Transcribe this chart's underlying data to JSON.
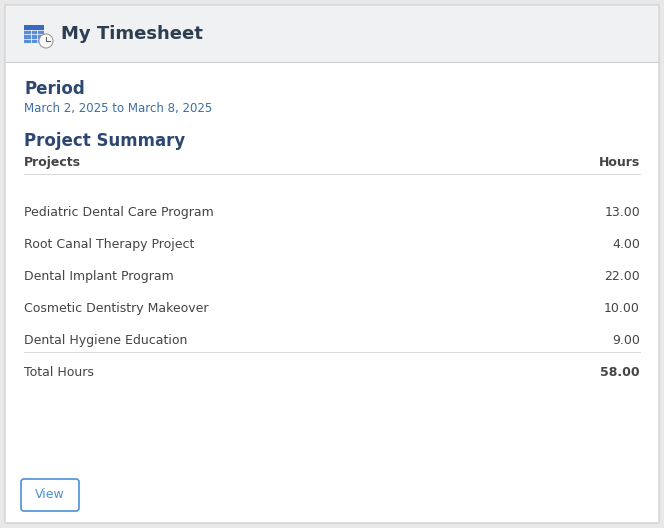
{
  "title": "My Timesheet",
  "outer_bg": "#e8e8e8",
  "header_bg": "#f0f1f3",
  "body_bg": "#ffffff",
  "border_color": "#d0d0d0",
  "period_label": "Period",
  "period_value": "March 2, 2025 to March 8, 2025",
  "section_title": "Project Summary",
  "col_projects": "Projects",
  "col_hours": "Hours",
  "projects": [
    "Pediatric Dental Care Program",
    "Root Canal Therapy Project",
    "Dental Implant Program",
    "Cosmetic Dentistry Makeover",
    "Dental Hygiene Education"
  ],
  "hours": [
    "13.00",
    "4.00",
    "22.00",
    "10.00",
    "9.00"
  ],
  "total_label": "Total Hours",
  "total_value": "58.00",
  "button_label": "View",
  "heading_color": "#2c4770",
  "text_color": "#444444",
  "blue_text_color": "#3a6ea5",
  "button_border": "#4a90d9",
  "button_text": "#4a90d9",
  "separator_color": "#d8d8d8",
  "header_text_color": "#2c3e50",
  "icon_color": "#5b8dd9",
  "title_fontsize": 13,
  "heading_fontsize": 12,
  "body_fontsize": 9,
  "small_fontsize": 8.5
}
